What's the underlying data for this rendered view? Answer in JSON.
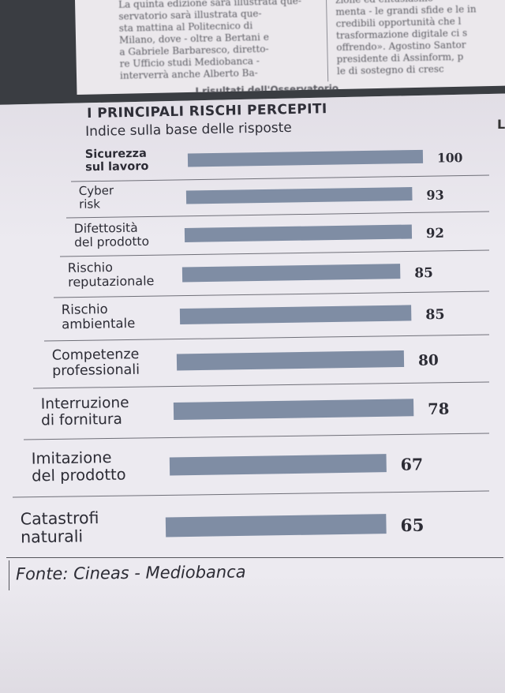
{
  "newspaper": {
    "left_column": [
      "La quinta edizione sarà illustrata que-",
      "servatorio sarà illustrata que-",
      "sta mattina al Politecnico di",
      "Milano, dove - oltre a Bertani e",
      "a Gabriele Barbaresco, diretto-",
      "re Ufficio studi Mediobanca -",
      "interverrà anche Alberto Ba-"
    ],
    "right_column": [
      "zione ed entusiasmo -",
      "menta - le grandi sfide e le in",
      "credibili opportunità che l",
      "trasformazione digitale ci s",
      "offrendo». Agostino Santor",
      "presidente di Assinform, p",
      "le di sostegno di cresc"
    ],
    "strip_heading": "I risultati dell'Osservatorio"
  },
  "chart_data": {
    "type": "bar",
    "orientation": "horizontal",
    "title": "I PRINCIPALI RISCHI PERCEPITI",
    "subtitle": "Indice sulla base delle risposte",
    "categories": [
      [
        "Sicurezza",
        "sul lavoro"
      ],
      [
        "Cyber",
        "risk"
      ],
      [
        "Difettosità",
        "del prodotto"
      ],
      [
        "Rischio",
        "reputazionale"
      ],
      [
        "Rischio",
        "ambientale"
      ],
      [
        "Competenze",
        "professionali"
      ],
      [
        "Interruzione",
        "di fornitura"
      ],
      [
        "Imitazione",
        "del prodotto"
      ],
      [
        "Catastrofi",
        "naturali"
      ]
    ],
    "values": [
      100,
      93,
      92,
      85,
      85,
      80,
      78,
      67,
      65
    ],
    "value_labels": [
      "100",
      "93",
      "92",
      "85",
      "85",
      "80",
      "78",
      "67",
      "65"
    ],
    "xlim": [
      0,
      100
    ],
    "bar_color": "#7f8da4",
    "text_color": "#2c2c35",
    "grid": false,
    "source": "Fonte: Cineas - Mediobanca"
  }
}
